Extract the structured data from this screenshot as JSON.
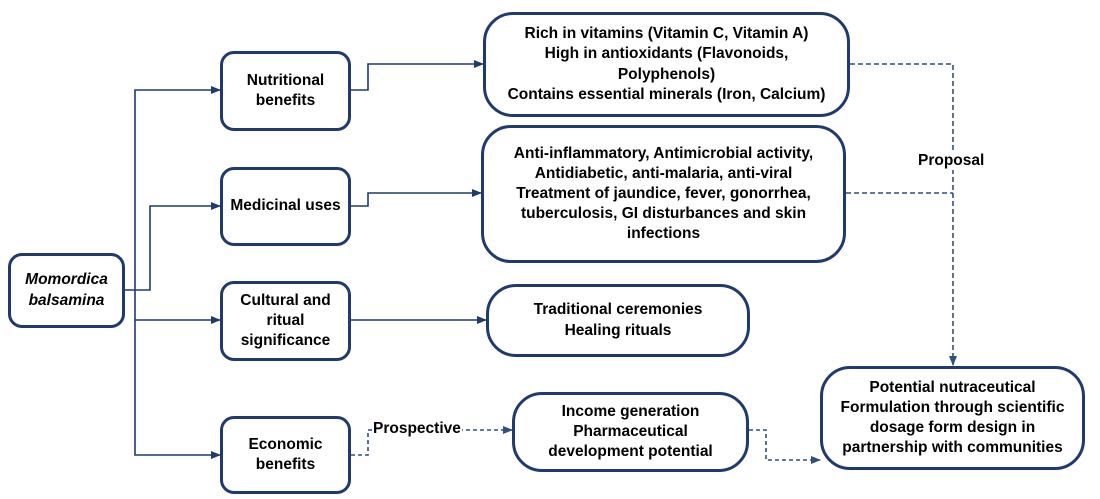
{
  "root": {
    "label": "Momordica\nbalsamina"
  },
  "categories": {
    "nutritional": "Nutritional\nbenefits",
    "medicinal": "Medicinal uses",
    "cultural": "Cultural and\nritual\nsignificance",
    "economic": "Economic\nbenefits"
  },
  "details": {
    "nutritional": "Rich in vitamins (Vitamin C, Vitamin A)\nHigh in antioxidants (Flavonoids,\nPolyphenols)\nContains essential minerals (Iron, Calcium)",
    "medicinal": "Anti-inflammatory, Antimicrobial activity,\nAntidiabetic, anti-malaria, anti-viral\nTreatment of jaundice, fever, gonorrhea,\ntuberculosis, GI disturbances and skin\ninfections",
    "cultural": "Traditional ceremonies\nHealing rituals",
    "economic": "Income generation\nPharmaceutical\ndevelopment potential"
  },
  "outcome": {
    "label": "Potential nutraceutical\nFormulation through scientific\ndosage form design in\npartnership with communities"
  },
  "connector_labels": {
    "proposal": "Proposal",
    "prospective": "Prospective"
  },
  "colors": {
    "border": "#1f3a6e",
    "solid_line": "#1f3a6e",
    "dashed_line": "#2f4f7f"
  }
}
